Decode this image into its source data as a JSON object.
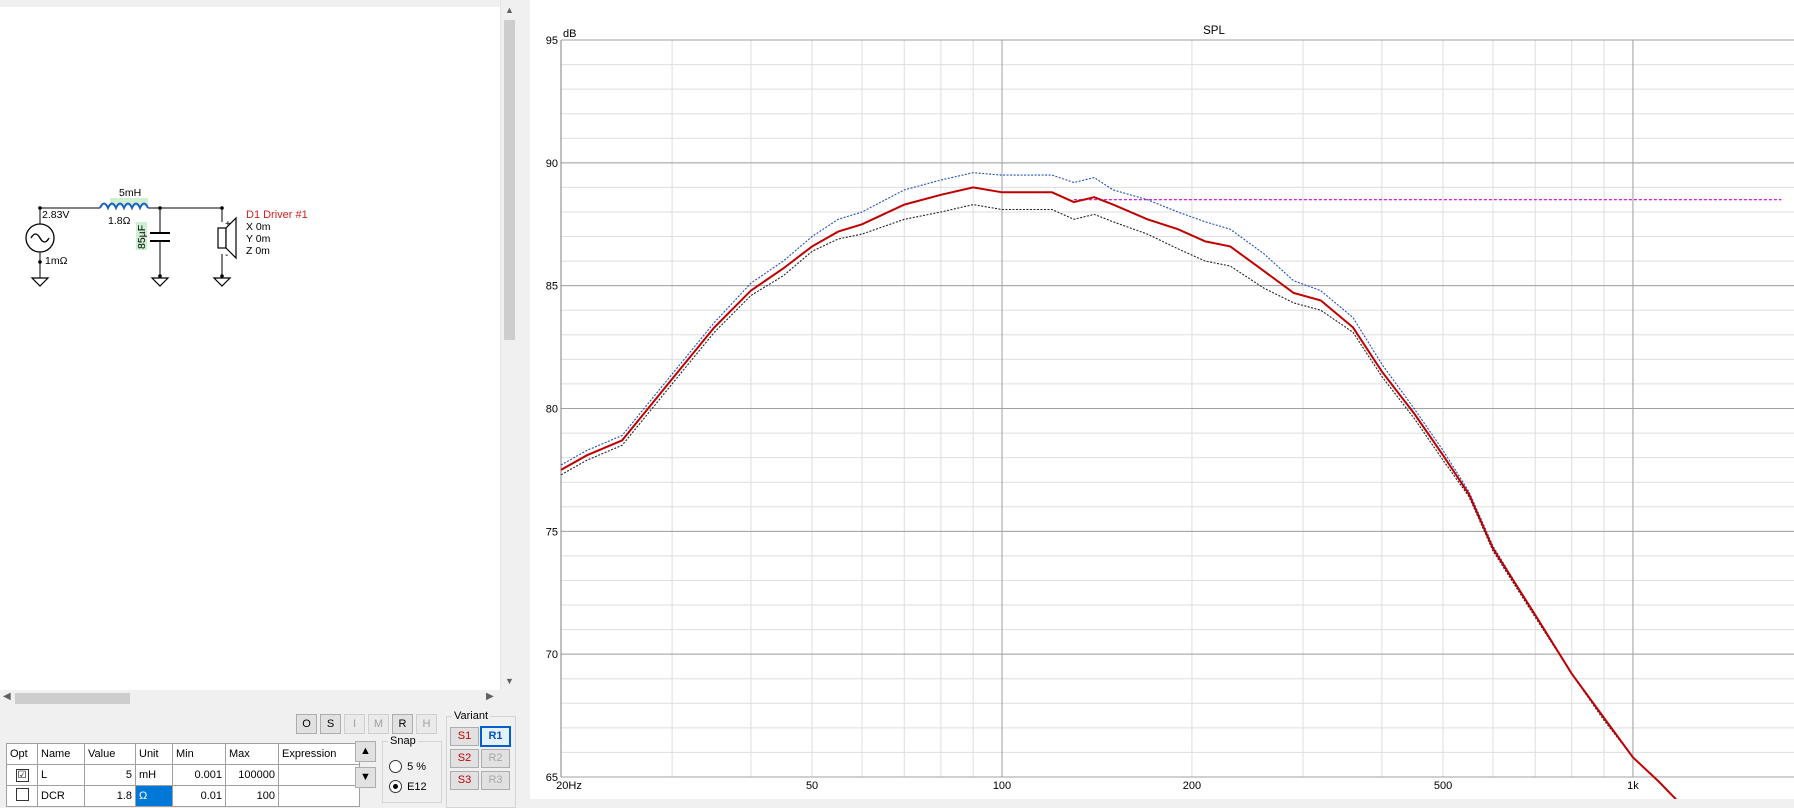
{
  "schematic": {
    "source_voltage": "2.83V",
    "source_resistance": "1mΩ",
    "inductor_value": "5mH",
    "inductor_dcr": "1.8Ω",
    "capacitor_value": "85µF",
    "driver_label": "D1 Driver #1",
    "driver_x": "X 0m",
    "driver_y": "Y 0m",
    "driver_z": "Z 0m",
    "driver_plus": "+",
    "driver_minus": "-"
  },
  "toolbar": {
    "buttons": [
      "O",
      "S",
      "I",
      "M",
      "R",
      "H"
    ]
  },
  "params": {
    "headers": [
      "Opt",
      "Name",
      "Value",
      "Unit",
      "Min",
      "Max",
      "Expression"
    ],
    "rows": [
      {
        "opt": "☑",
        "name": "L",
        "value": "5",
        "unit": "mH",
        "min": "0.001",
        "max": "100000",
        "expr": ""
      },
      {
        "opt": "",
        "name": "DCR",
        "value": "1.8",
        "unit": "Ω",
        "min": "0.01",
        "max": "100",
        "expr": ""
      }
    ]
  },
  "snap": {
    "title": "Snap",
    "option1": "5 %",
    "option2": "E12"
  },
  "variant": {
    "title": "Variant",
    "s_buttons": [
      "S1",
      "S2",
      "S3"
    ],
    "r_buttons": [
      "R1",
      "R2",
      "R3"
    ]
  },
  "colors": {
    "main_curve": "#c00000",
    "upper_curve": "#1f4fbf",
    "lower_curve": "#222222",
    "target_line": "#d000d0",
    "grid_major": "#a0a0a0",
    "grid_minor": "#dedede"
  },
  "chart_data": {
    "type": "line",
    "title": "SPL",
    "ylabel": "dB",
    "xscale": "log",
    "xlim": [
      20,
      1800
    ],
    "ylim": [
      65,
      95
    ],
    "x_tick_labels": [
      {
        "x": 20,
        "label": "20Hz"
      },
      {
        "x": 50,
        "label": "50"
      },
      {
        "x": 100,
        "label": "100"
      },
      {
        "x": 200,
        "label": "200"
      },
      {
        "x": 500,
        "label": "500"
      },
      {
        "x": 1000,
        "label": "1k"
      }
    ],
    "y_ticks": [
      65,
      70,
      75,
      80,
      85,
      90,
      95
    ],
    "grid": true,
    "series": [
      {
        "role": "main",
        "color": "#c00000",
        "x": [
          20,
          22,
          25,
          30,
          35,
          40,
          45,
          50,
          55,
          60,
          70,
          80,
          90,
          100,
          110,
          120,
          130,
          140,
          150,
          170,
          190,
          210,
          230,
          260,
          290,
          320,
          360,
          400,
          450,
          500,
          550,
          600,
          700,
          800,
          900,
          1000,
          1100,
          1200
        ],
        "y": [
          77.5,
          78.1,
          78.7,
          81.2,
          83.3,
          84.8,
          85.7,
          86.6,
          87.2,
          87.5,
          88.3,
          88.7,
          89.0,
          88.8,
          88.8,
          88.8,
          88.4,
          88.6,
          88.3,
          87.7,
          87.3,
          86.8,
          86.6,
          85.6,
          84.7,
          84.4,
          83.3,
          81.5,
          79.8,
          78.1,
          76.5,
          74.3,
          71.6,
          69.2,
          67.4,
          65.8,
          64.8,
          63.8
        ]
      },
      {
        "role": "upper",
        "color": "#1f4fbf",
        "x": [
          20,
          22,
          25,
          30,
          35,
          40,
          45,
          50,
          55,
          60,
          70,
          80,
          90,
          100,
          110,
          120,
          130,
          140,
          150,
          170,
          190,
          210,
          230,
          260,
          290,
          320,
          360,
          400,
          450,
          500,
          550,
          600,
          700,
          800,
          900,
          1000,
          1100,
          1200
        ],
        "y": [
          77.7,
          78.3,
          78.9,
          81.4,
          83.5,
          85.1,
          86.0,
          87.0,
          87.7,
          88.0,
          88.9,
          89.3,
          89.6,
          89.5,
          89.5,
          89.5,
          89.2,
          89.4,
          88.9,
          88.5,
          88.0,
          87.6,
          87.3,
          86.3,
          85.2,
          84.8,
          83.7,
          81.8,
          80.0,
          78.3,
          76.6,
          74.4,
          71.6,
          69.2,
          67.4,
          65.8,
          64.8,
          63.8
        ]
      },
      {
        "role": "lower",
        "color": "#222222",
        "x": [
          20,
          22,
          25,
          30,
          35,
          40,
          45,
          50,
          55,
          60,
          70,
          80,
          90,
          100,
          110,
          120,
          130,
          140,
          150,
          170,
          190,
          210,
          230,
          260,
          290,
          320,
          360,
          400,
          450,
          500,
          550,
          600,
          700,
          800,
          900,
          1000,
          1100,
          1200
        ],
        "y": [
          77.3,
          77.9,
          78.5,
          81.0,
          83.1,
          84.6,
          85.4,
          86.4,
          86.9,
          87.1,
          87.7,
          88.0,
          88.3,
          88.1,
          88.1,
          88.1,
          87.7,
          87.9,
          87.6,
          87.1,
          86.5,
          86.0,
          85.8,
          84.9,
          84.3,
          84.0,
          83.1,
          81.3,
          79.6,
          77.9,
          76.4,
          74.2,
          71.5,
          69.2,
          67.3,
          65.8,
          64.8,
          63.8
        ]
      },
      {
        "role": "target",
        "color": "#d000d0",
        "dashed": true,
        "x": [
          130,
          1720
        ],
        "y": [
          88.5,
          88.5
        ]
      }
    ]
  }
}
